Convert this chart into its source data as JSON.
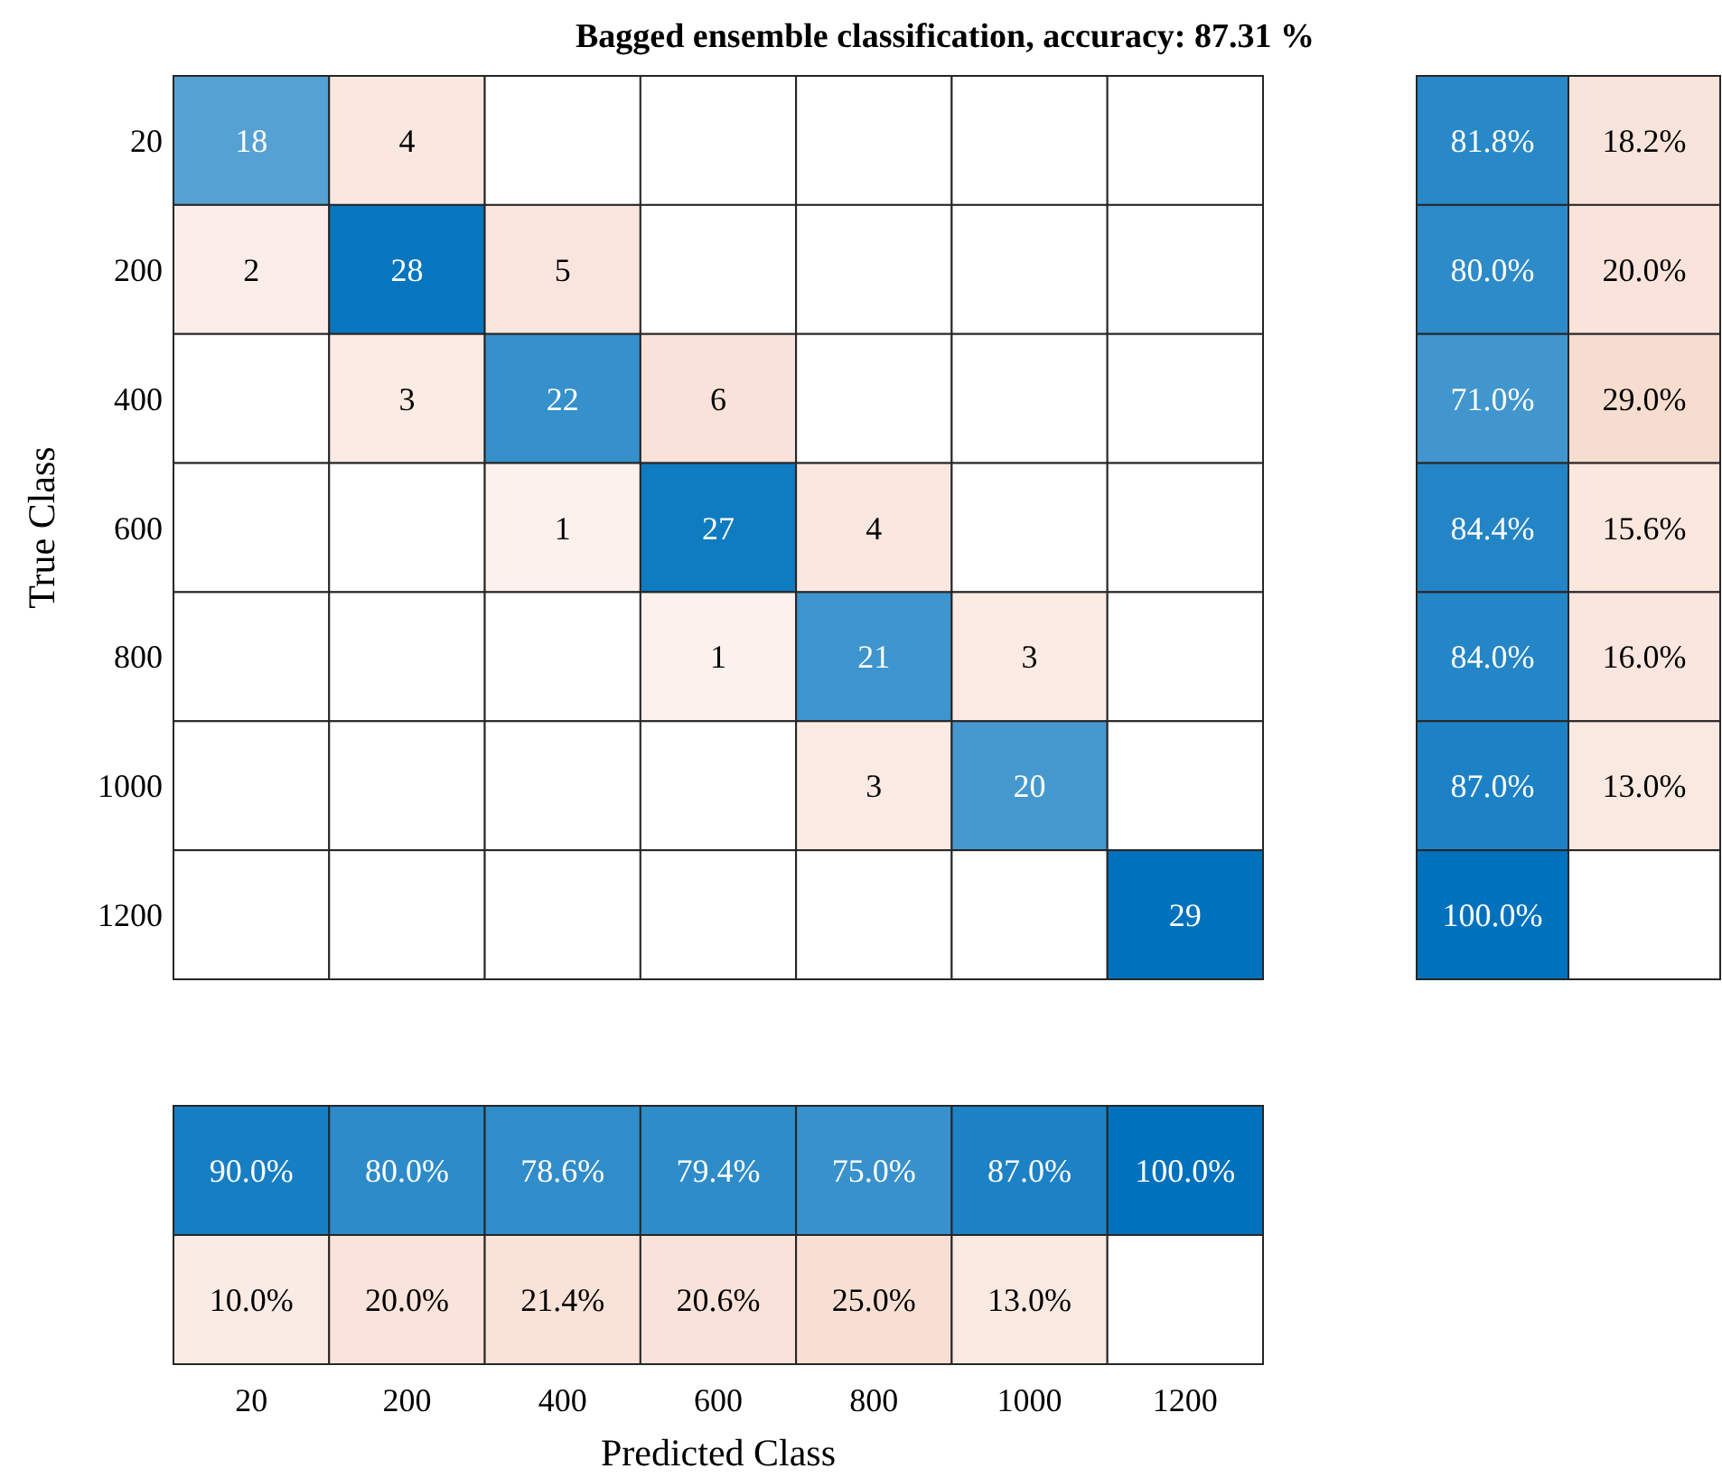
{
  "chart_data": [
    {
      "type": "heatmap",
      "title": "Bagged ensemble classification, accuracy: 87.31 %",
      "ylabel": "True Class",
      "categories": [
        "20",
        "200",
        "400",
        "600",
        "800",
        "1000",
        "1200"
      ],
      "y_categories": [
        "20",
        "200",
        "400",
        "600",
        "800",
        "1000",
        "1200"
      ],
      "tick_labels": "y",
      "data_labels": true,
      "cells": [
        [
          18,
          4,
          null,
          null,
          null,
          null,
          null
        ],
        [
          2,
          28,
          5,
          null,
          null,
          null,
          null
        ],
        [
          null,
          3,
          22,
          6,
          null,
          null,
          null
        ],
        [
          null,
          null,
          1,
          27,
          4,
          null,
          null
        ],
        [
          null,
          null,
          null,
          1,
          21,
          3,
          null
        ],
        [
          null,
          null,
          null,
          null,
          3,
          20,
          null
        ],
        [
          null,
          null,
          null,
          null,
          null,
          null,
          29
        ]
      ]
    },
    {
      "type": "heatmap",
      "categories": [
        null,
        null
      ],
      "y_categories": [
        "20",
        "200",
        "400",
        "600",
        "800",
        "1000",
        "1200"
      ],
      "tick_labels": false,
      "cells": [
        [
          81.8,
          18.2
        ],
        [
          80.0,
          20.0
        ],
        [
          71.0,
          29.0
        ],
        [
          84.4,
          15.6
        ],
        [
          84.0,
          16.0
        ],
        [
          87.0,
          13.0
        ],
        [
          100.0,
          null
        ]
      ],
      "cell_labels": [
        [
          "81.8%",
          "18.2%"
        ],
        [
          "80.0%",
          "20.0%"
        ],
        [
          "71.0%",
          "29.0%"
        ],
        [
          "84.4%",
          "15.6%"
        ],
        [
          "84.0%",
          "16.0%"
        ],
        [
          "87.0%",
          "13.0%"
        ],
        [
          "100.0%",
          null
        ]
      ]
    },
    {
      "type": "heatmap",
      "xlabel": "Predicted Class",
      "categories": [
        "20",
        "200",
        "400",
        "600",
        "800",
        "1000",
        "1200"
      ],
      "y_categories": [
        null,
        null
      ],
      "tick_labels": "x",
      "cells": [
        [
          90.0,
          80.0,
          78.6,
          79.4,
          75.0,
          87.0,
          100.0
        ],
        [
          10.0,
          20.0,
          21.4,
          20.6,
          25.0,
          13.0,
          null
        ]
      ],
      "cell_labels": [
        [
          "90.0%",
          "80.0%",
          "78.6%",
          "79.4%",
          "75.0%",
          "87.0%",
          "100.0%"
        ],
        [
          "10.0%",
          "20.0%",
          "21.4%",
          "20.6%",
          "25.0%",
          "13.0%",
          null
        ]
      ]
    }
  ]
}
